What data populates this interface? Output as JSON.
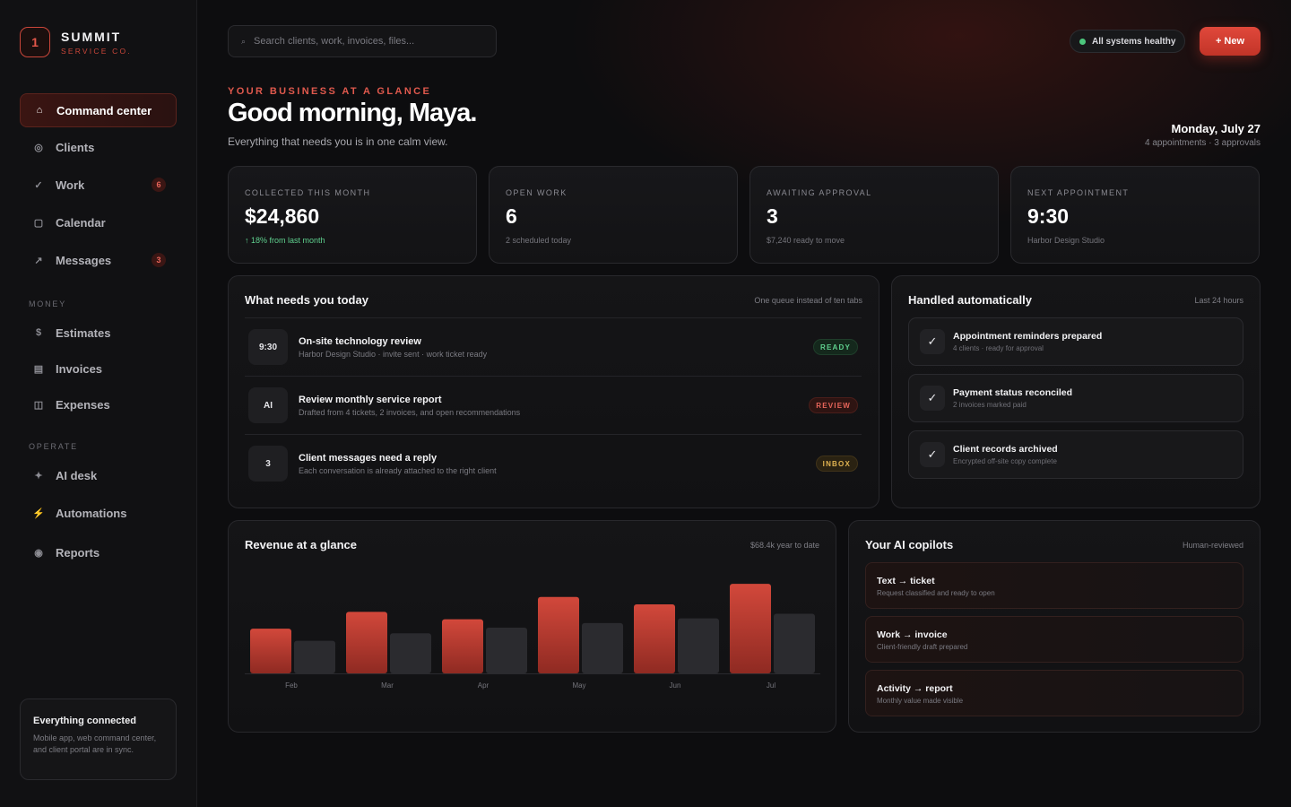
{
  "brand": {
    "mark": "1",
    "name": "SUMMIT",
    "sub": "SERVICE CO."
  },
  "sidebar": {
    "items": [
      {
        "label": "Command center",
        "icon": "home-icon",
        "glyph": "⌂",
        "active": true
      },
      {
        "label": "Clients",
        "icon": "clients-icon",
        "glyph": "◎"
      },
      {
        "label": "Work",
        "icon": "check-icon",
        "glyph": "✓",
        "badge": "6"
      },
      {
        "label": "Calendar",
        "icon": "calendar-icon",
        "glyph": "▢"
      },
      {
        "label": "Messages",
        "icon": "arrow-up-right-icon",
        "glyph": "↗",
        "badge": "3"
      }
    ],
    "money_label": "MONEY",
    "money_items": [
      {
        "label": "Estimates",
        "icon": "dollar-icon",
        "glyph": "$"
      },
      {
        "label": "Invoices",
        "icon": "invoice-icon",
        "glyph": "▤"
      },
      {
        "label": "Expenses",
        "icon": "expenses-icon",
        "glyph": "◫"
      }
    ],
    "operate_label": "OPERATE",
    "operate_items": [
      {
        "label": "AI desk",
        "icon": "sparkle-icon",
        "glyph": "✦"
      },
      {
        "label": "Automations",
        "icon": "bolt-icon",
        "glyph": "⚡"
      },
      {
        "label": "Reports",
        "icon": "reports-icon",
        "glyph": "◉"
      }
    ],
    "card": {
      "title": "Everything connected",
      "body": "Mobile app, web command center, and client portal are in sync."
    }
  },
  "search": {
    "placeholder": "Search clients, work, invoices, files..."
  },
  "status": {
    "label": "All systems healthy",
    "color": "#4cc77d"
  },
  "new_button": "+ New",
  "header": {
    "eyebrow": "YOUR BUSINESS AT A GLANCE",
    "greeting": "Good morning, Maya.",
    "subtitle": "Everything that needs you is in one calm view.",
    "date": "Monday, July 27",
    "date_sub": "4 appointments · 3 approvals"
  },
  "kpis": [
    {
      "label": "COLLECTED THIS MONTH",
      "value": "$24,860",
      "note": "↑ 18% from last month",
      "positive": true
    },
    {
      "label": "OPEN WORK",
      "value": "6",
      "note": "2 scheduled today"
    },
    {
      "label": "AWAITING APPROVAL",
      "value": "3",
      "note": "$7,240 ready to move"
    },
    {
      "label": "NEXT APPOINTMENT",
      "value": "9:30",
      "note": "Harbor Design Studio"
    }
  ],
  "queue": {
    "title": "What needs you today",
    "meta": "One queue instead of ten tabs",
    "rows": [
      {
        "badge": "9:30",
        "title": "On-site technology review",
        "sub": "Harbor Design Studio · invite sent · work ticket ready",
        "tag": "READY"
      },
      {
        "badge": "AI",
        "title": "Review monthly service report",
        "sub": "Drafted from 4 tickets, 2 invoices, and open recommendations",
        "tag": "REVIEW"
      },
      {
        "badge": "3",
        "title": "Client messages need a reply",
        "sub": "Each conversation is already attached to the right client",
        "tag": "INBOX"
      }
    ]
  },
  "auto": {
    "title": "Handled automatically",
    "meta": "Last 24 hours",
    "rows": [
      {
        "title": "Appointment reminders prepared",
        "sub": "4 clients · ready for approval"
      },
      {
        "title": "Payment status reconciled",
        "sub": "2 invoices marked paid"
      },
      {
        "title": "Client records archived",
        "sub": "Encrypted off-site copy complete"
      }
    ]
  },
  "revenue": {
    "title": "Revenue at a glance",
    "meta": "$68.4k year to date"
  },
  "chart_data": {
    "type": "bar",
    "categories": [
      "Feb",
      "Mar",
      "Apr",
      "May",
      "Jun",
      "Jul"
    ],
    "series": [
      {
        "values": [
          48,
          66,
          58,
          82,
          74,
          96
        ],
        "color": "#c9463a"
      },
      {
        "values": [
          35,
          43,
          49,
          54,
          59,
          64
        ],
        "color": "#2b2b2f"
      }
    ],
    "ylim": [
      0,
      100
    ],
    "grid": false
  },
  "copilots": {
    "title": "Your AI copilots",
    "meta": "Human-reviewed",
    "rows": [
      {
        "title": "Text → ticket",
        "sub": "Request classified and ready to open"
      },
      {
        "title": "Work → invoice",
        "sub": "Client-friendly draft prepared"
      },
      {
        "title": "Activity → report",
        "sub": "Monthly value made visible"
      }
    ]
  },
  "colors": {
    "accent": "#e0483b",
    "background": "#0d0d0f",
    "success": "#5fd08e",
    "warning": "#e0b352"
  }
}
